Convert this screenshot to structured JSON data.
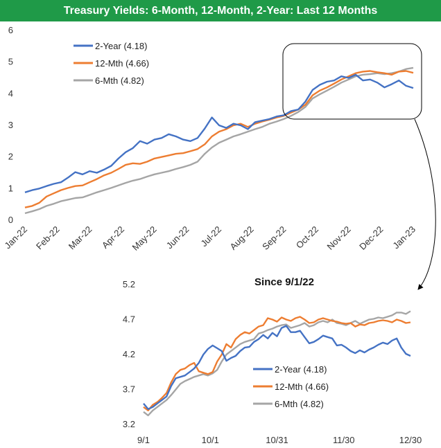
{
  "title": "Treasury Yields: 6-Month, 12-Month, 2-Year: Last 12 Months",
  "colors": {
    "banner": "#1f9a48",
    "two_year": "#4472c4",
    "twelve_mth": "#ed7d31",
    "six_mth": "#a5a5a5"
  },
  "chart_data": [
    {
      "type": "line",
      "title": "",
      "xlabel": "",
      "ylabel": "",
      "ylim": [
        0,
        6
      ],
      "yticks": [
        "0",
        "1",
        "2",
        "3",
        "4",
        "5",
        "6"
      ],
      "xticks": [
        "Jan-22",
        "Feb-22",
        "Mar-22",
        "Apr-22",
        "May-22",
        "Jun-22",
        "Jul-22",
        "Aug-22",
        "Sep-22",
        "Oct-22",
        "Nov-22",
        "Dec-22",
        "Jan-23"
      ],
      "legend_position": "top-left",
      "series": [
        {
          "name": "2-Year (4.18)",
          "color": "#4472c4",
          "values": [
            0.88,
            0.95,
            1.0,
            1.08,
            1.15,
            1.2,
            1.35,
            1.52,
            1.45,
            1.55,
            1.5,
            1.6,
            1.72,
            1.95,
            2.15,
            2.28,
            2.5,
            2.42,
            2.55,
            2.6,
            2.72,
            2.65,
            2.55,
            2.5,
            2.6,
            2.9,
            3.25,
            3.0,
            2.92,
            3.05,
            3.0,
            2.88,
            3.1,
            3.15,
            3.2,
            3.28,
            3.32,
            3.45,
            3.5,
            3.75,
            4.12,
            4.28,
            4.38,
            4.42,
            4.55,
            4.5,
            4.6,
            4.42,
            4.45,
            4.35,
            4.2,
            4.3,
            4.42,
            4.25,
            4.18
          ]
        },
        {
          "name": "12-Mth (4.66)",
          "color": "#ed7d31",
          "values": [
            0.4,
            0.45,
            0.55,
            0.75,
            0.85,
            0.95,
            1.02,
            1.08,
            1.1,
            1.2,
            1.3,
            1.42,
            1.5,
            1.62,
            1.75,
            1.8,
            1.78,
            1.85,
            1.95,
            2.0,
            2.05,
            2.1,
            2.12,
            2.18,
            2.25,
            2.4,
            2.65,
            2.8,
            2.88,
            3.0,
            3.05,
            2.95,
            3.05,
            3.12,
            3.18,
            3.25,
            3.3,
            3.4,
            3.5,
            3.65,
            3.95,
            4.1,
            4.2,
            4.32,
            4.45,
            4.55,
            4.65,
            4.7,
            4.72,
            4.68,
            4.65,
            4.6,
            4.7,
            4.72,
            4.66
          ]
        },
        {
          "name": "6-Mth (4.82)",
          "color": "#a5a5a5",
          "values": [
            0.22,
            0.28,
            0.35,
            0.45,
            0.52,
            0.6,
            0.65,
            0.7,
            0.72,
            0.8,
            0.88,
            0.95,
            1.02,
            1.1,
            1.18,
            1.25,
            1.3,
            1.38,
            1.45,
            1.5,
            1.55,
            1.62,
            1.68,
            1.75,
            1.85,
            2.1,
            2.3,
            2.45,
            2.55,
            2.65,
            2.72,
            2.8,
            2.88,
            2.95,
            3.05,
            3.12,
            3.2,
            3.3,
            3.42,
            3.58,
            3.85,
            3.98,
            4.1,
            4.22,
            4.35,
            4.45,
            4.55,
            4.6,
            4.62,
            4.65,
            4.62,
            4.65,
            4.7,
            4.78,
            4.82
          ]
        }
      ]
    },
    {
      "type": "line",
      "title": "Since 9/1/22",
      "xlabel": "",
      "ylabel": "",
      "ylim": [
        3.2,
        5.2
      ],
      "yticks": [
        "3.2",
        "3.7",
        "4.2",
        "4.7",
        "5.2"
      ],
      "xticks": [
        "9/1",
        "10/1",
        "10/31",
        "11/30",
        "12/30"
      ],
      "legend_position": "bottom-right",
      "series": [
        {
          "name": "2-Year (4.18)",
          "color": "#4472c4",
          "values": [
            3.5,
            3.42,
            3.45,
            3.5,
            3.55,
            3.6,
            3.75,
            3.86,
            3.88,
            3.9,
            3.95,
            4.0,
            4.08,
            4.2,
            4.28,
            4.33,
            4.29,
            4.25,
            4.11,
            4.15,
            4.18,
            4.25,
            4.3,
            4.31,
            4.38,
            4.42,
            4.48,
            4.43,
            4.51,
            4.46,
            4.58,
            4.61,
            4.52,
            4.52,
            4.54,
            4.45,
            4.36,
            4.38,
            4.42,
            4.47,
            4.45,
            4.43,
            4.33,
            4.34,
            4.3,
            4.25,
            4.22,
            4.26,
            4.23,
            4.27,
            4.3,
            4.34,
            4.37,
            4.35,
            4.4,
            4.43,
            4.3,
            4.21,
            4.18
          ]
        },
        {
          "name": "12-Mth (4.66)",
          "color": "#ed7d31",
          "values": [
            3.45,
            3.4,
            3.48,
            3.52,
            3.58,
            3.65,
            3.8,
            3.92,
            3.98,
            4.0,
            4.05,
            4.08,
            3.96,
            3.94,
            3.92,
            3.95,
            4.1,
            4.2,
            4.35,
            4.3,
            4.42,
            4.48,
            4.52,
            4.5,
            4.55,
            4.6,
            4.62,
            4.72,
            4.7,
            4.67,
            4.73,
            4.7,
            4.68,
            4.72,
            4.74,
            4.7,
            4.65,
            4.66,
            4.7,
            4.72,
            4.7,
            4.68,
            4.67,
            4.65,
            4.64,
            4.65,
            4.6,
            4.63,
            4.62,
            4.65,
            4.66,
            4.68,
            4.69,
            4.68,
            4.66,
            4.7,
            4.68,
            4.65,
            4.66
          ]
        },
        {
          "name": "6-Mth (4.82)",
          "color": "#a5a5a5",
          "values": [
            3.38,
            3.33,
            3.4,
            3.45,
            3.5,
            3.55,
            3.62,
            3.7,
            3.78,
            3.82,
            3.85,
            3.88,
            3.9,
            3.92,
            3.9,
            3.93,
            3.98,
            4.1,
            4.2,
            4.25,
            4.3,
            4.35,
            4.38,
            4.4,
            4.42,
            4.5,
            4.52,
            4.55,
            4.57,
            4.6,
            4.62,
            4.63,
            4.58,
            4.6,
            4.62,
            4.65,
            4.6,
            4.62,
            4.66,
            4.68,
            4.66,
            4.7,
            4.65,
            4.64,
            4.62,
            4.65,
            4.68,
            4.64,
            4.67,
            4.7,
            4.71,
            4.73,
            4.72,
            4.74,
            4.76,
            4.8,
            4.8,
            4.78,
            4.82
          ]
        }
      ]
    }
  ]
}
